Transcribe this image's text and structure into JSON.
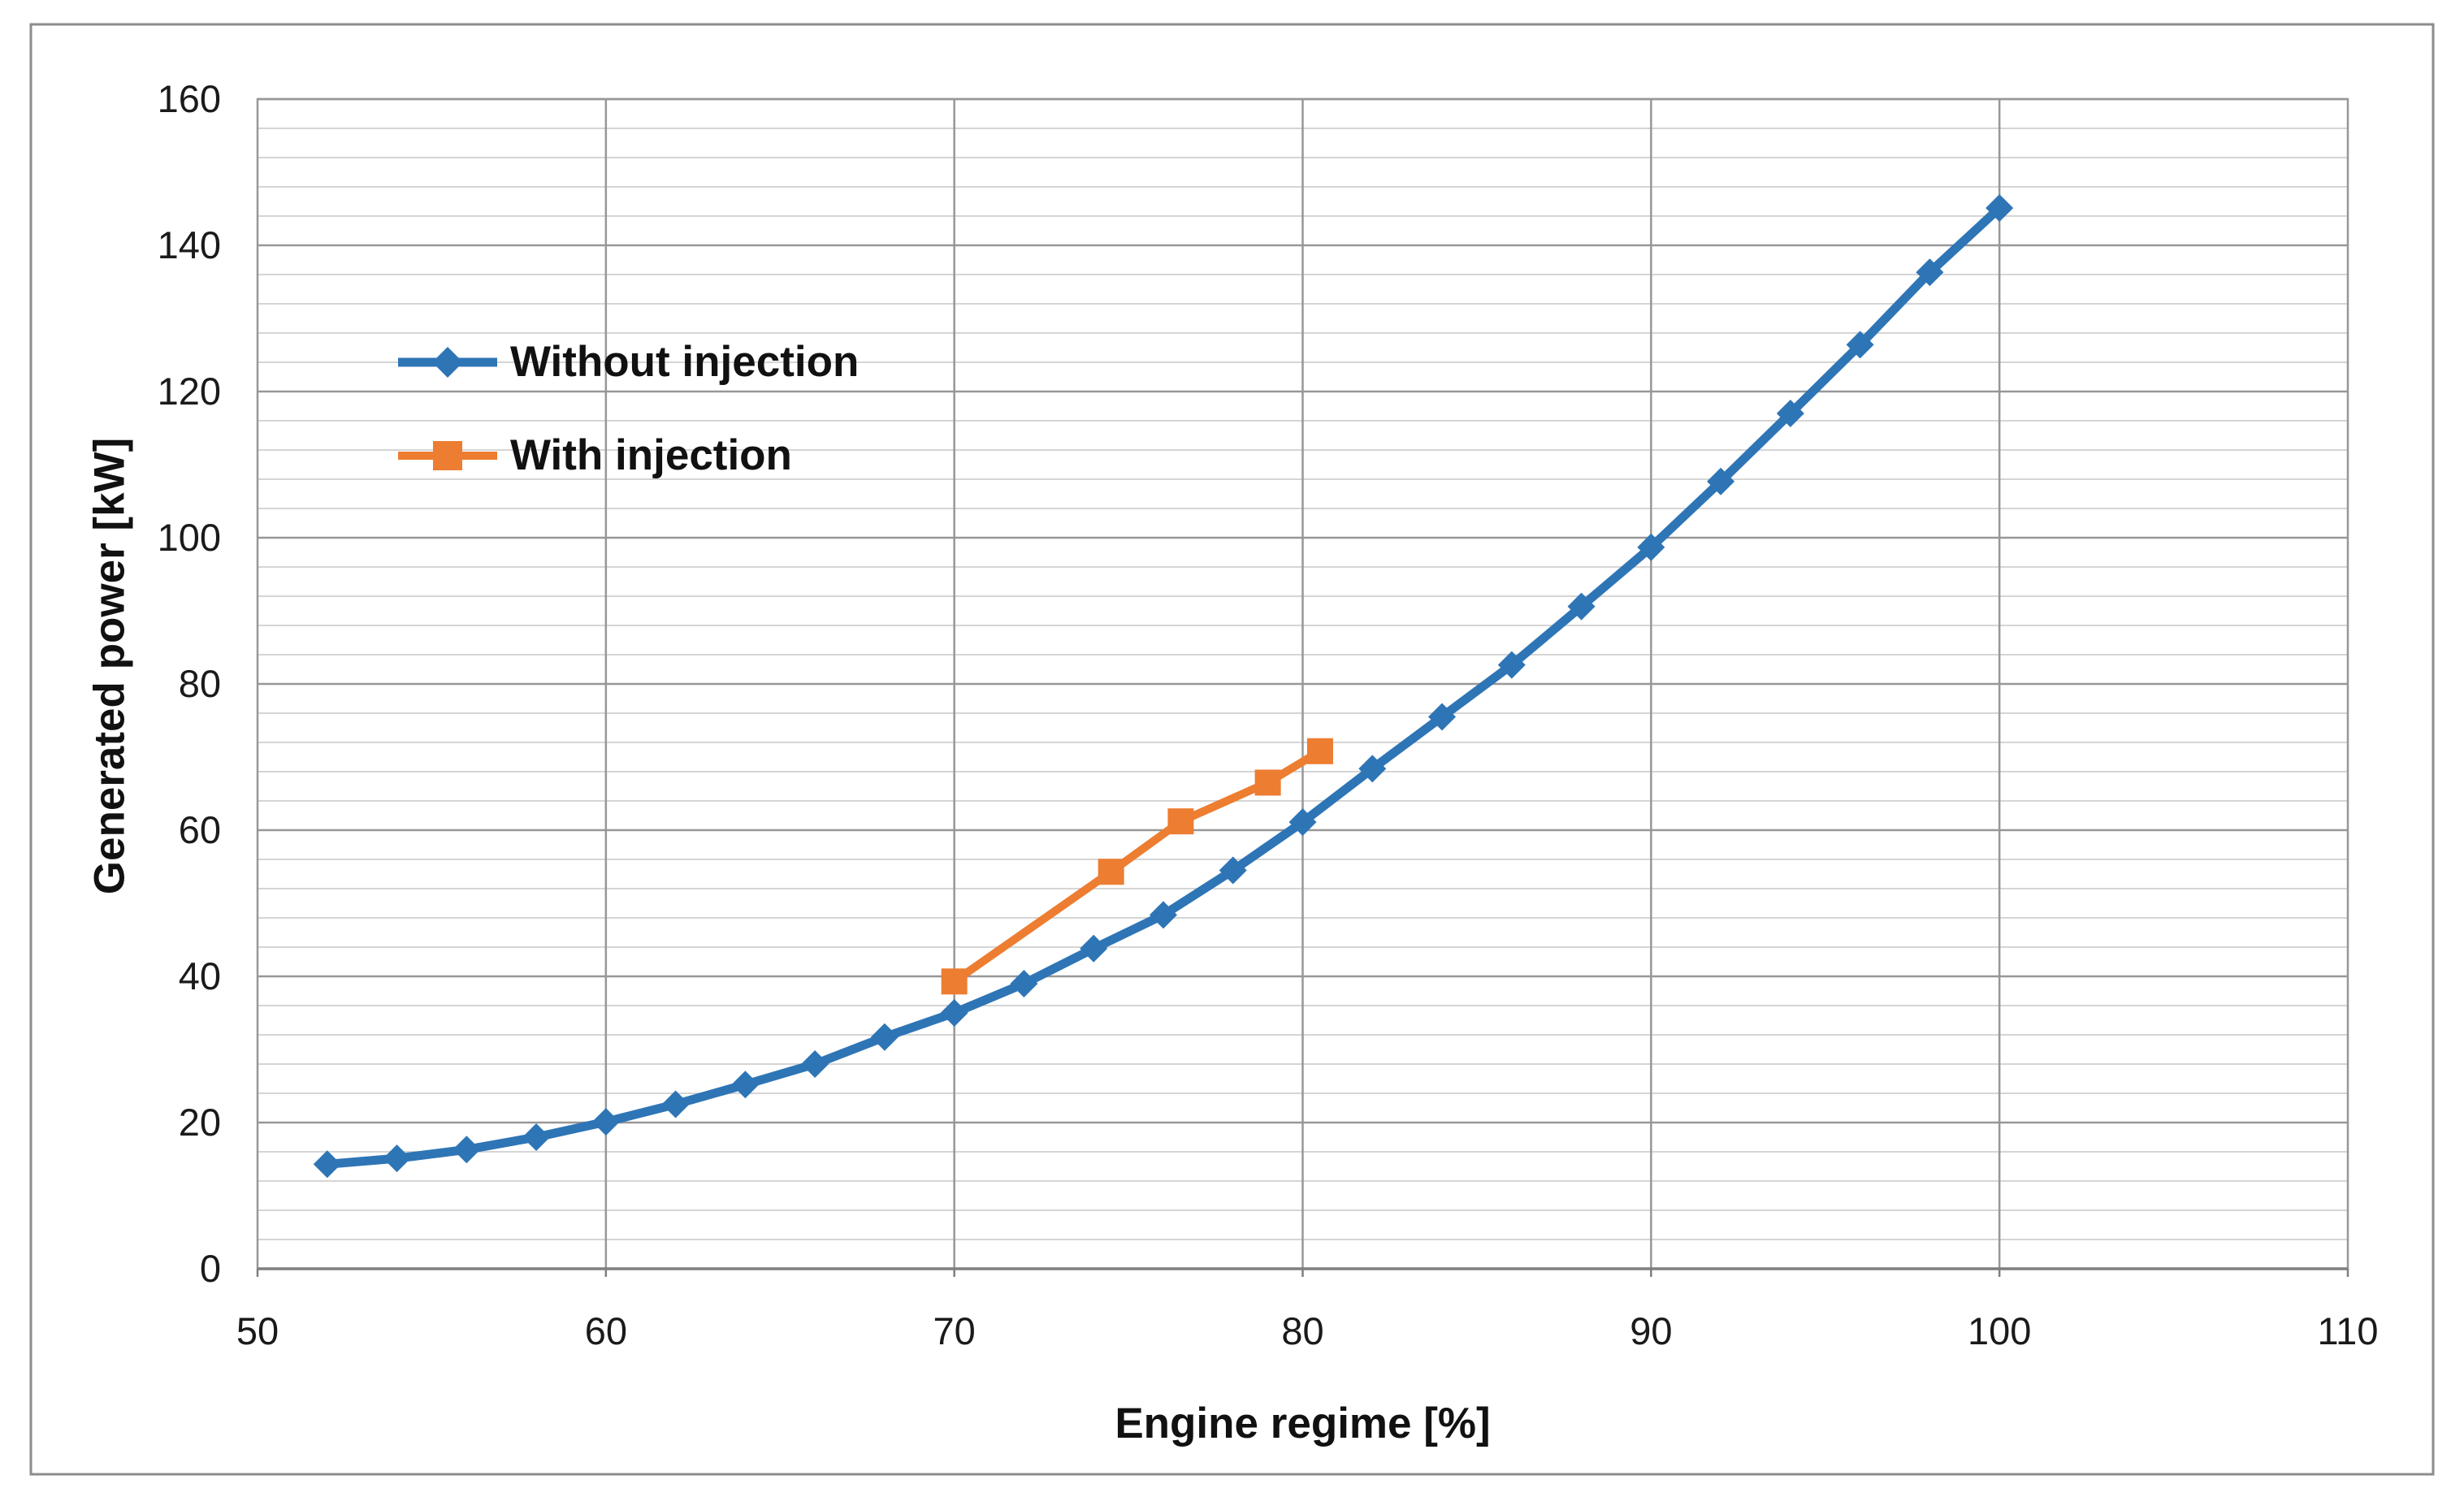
{
  "figure": {
    "background_color": "#FFFFFF",
    "border_color": "#8C8C8C",
    "grid_minor_color": "#CFCFCF",
    "grid_major_color": "#979797",
    "axis_line_color": "#7F7F7F",
    "text_color": "#1A1A1A"
  },
  "chart_data": {
    "type": "line",
    "title": "",
    "xlabel": "Engine regime [%]",
    "ylabel": "Generated power [kW]",
    "xlim": [
      50,
      110
    ],
    "ylim": [
      0,
      160
    ],
    "x_tick_labels": [
      50,
      60,
      70,
      80,
      90,
      100,
      110
    ],
    "y_tick_labels": [
      0,
      20,
      40,
      60,
      80,
      100,
      120,
      140,
      160
    ],
    "y_minor_unit": 4,
    "grid": "horizontal-minor-and-major, vertical-major",
    "legend_position": "inside-upper-left",
    "series": [
      {
        "name": "Without injection",
        "color": "#2E75B6",
        "marker": "diamond",
        "line_width": 11,
        "points": [
          [
            52,
            14.3
          ],
          [
            54,
            15.1
          ],
          [
            56,
            16.3
          ],
          [
            58,
            18.0
          ],
          [
            60,
            20.1
          ],
          [
            62,
            22.5
          ],
          [
            64,
            25.2
          ],
          [
            66,
            28.0
          ],
          [
            68,
            31.7
          ],
          [
            70,
            35.0
          ],
          [
            72,
            39.0
          ],
          [
            74,
            43.8
          ],
          [
            76,
            48.4
          ],
          [
            78,
            54.5
          ],
          [
            80,
            61.1
          ],
          [
            82,
            68.4
          ],
          [
            84,
            75.5
          ],
          [
            86,
            82.6
          ],
          [
            88,
            90.6
          ],
          [
            90,
            98.7
          ],
          [
            92,
            107.7
          ],
          [
            94,
            117.0
          ],
          [
            96,
            126.4
          ],
          [
            98,
            136.3
          ],
          [
            100,
            145.1
          ]
        ]
      },
      {
        "name": "With injection",
        "color": "#ED7D31",
        "marker": "square",
        "line_width": 10,
        "points": [
          [
            70,
            39.3
          ],
          [
            74.5,
            54.3
          ],
          [
            76.5,
            61.2
          ],
          [
            79,
            66.5
          ],
          [
            80.5,
            70.8
          ]
        ]
      }
    ]
  }
}
